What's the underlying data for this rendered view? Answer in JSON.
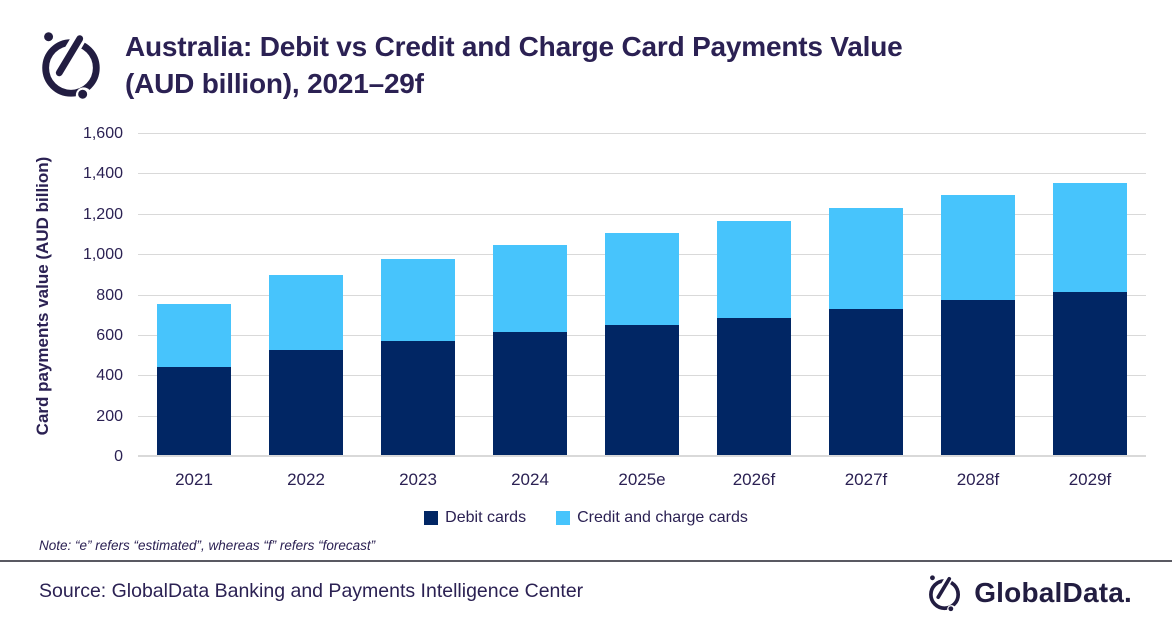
{
  "header": {
    "title_line1": "Australia: Debit vs Credit and Charge Card Payments Value",
    "title_line2": "(AUD billion), 2021–29f"
  },
  "chart_data": {
    "type": "bar",
    "stacked": true,
    "title": "Australia: Debit vs Credit and Charge Card Payments Value (AUD billion), 2021–29f",
    "categories": [
      "2021",
      "2022",
      "2023",
      "2024",
      "2025e",
      "2026f",
      "2027f",
      "2028f",
      "2029f"
    ],
    "series": [
      {
        "name": "Debit cards",
        "color": "#012664",
        "values": [
          445,
          530,
          575,
          620,
          655,
          690,
          735,
          780,
          815
        ]
      },
      {
        "name": "Credit and charge cards",
        "color": "#47C4FC",
        "values": [
          315,
          370,
          405,
          430,
          455,
          480,
          500,
          520,
          540
        ]
      }
    ],
    "totals": [
      760,
      900,
      980,
      1050,
      1110,
      1170,
      1235,
      1300,
      1355
    ],
    "xlabel": "",
    "ylabel": "Card payments value (AUD billion)",
    "ylim": [
      0,
      1600
    ],
    "ytick_step": 200,
    "ytick_labels": [
      "0",
      "200",
      "400",
      "600",
      "800",
      "1,000",
      "1,200",
      "1,400",
      "1,600"
    ],
    "grid": true,
    "gridline_color": "#D9D9D9",
    "legend_position": "bottom"
  },
  "note": "Note: “e” refers “estimated”, whereas “f” refers “forecast”",
  "footer": {
    "source": "Source: GlobalData Banking and Payments Intelligence Center",
    "brand": "GlobalData."
  },
  "icons": {
    "header_logo": "globaldata-mark",
    "footer_logo": "globaldata-mark"
  },
  "colors": {
    "title_text": "#2B2153",
    "axis_text": "#2B2153",
    "debit": "#012664",
    "credit": "#47C4FC",
    "gridline": "#D9D9D9",
    "separator": "#595962",
    "brand_ink": "#221D41"
  }
}
